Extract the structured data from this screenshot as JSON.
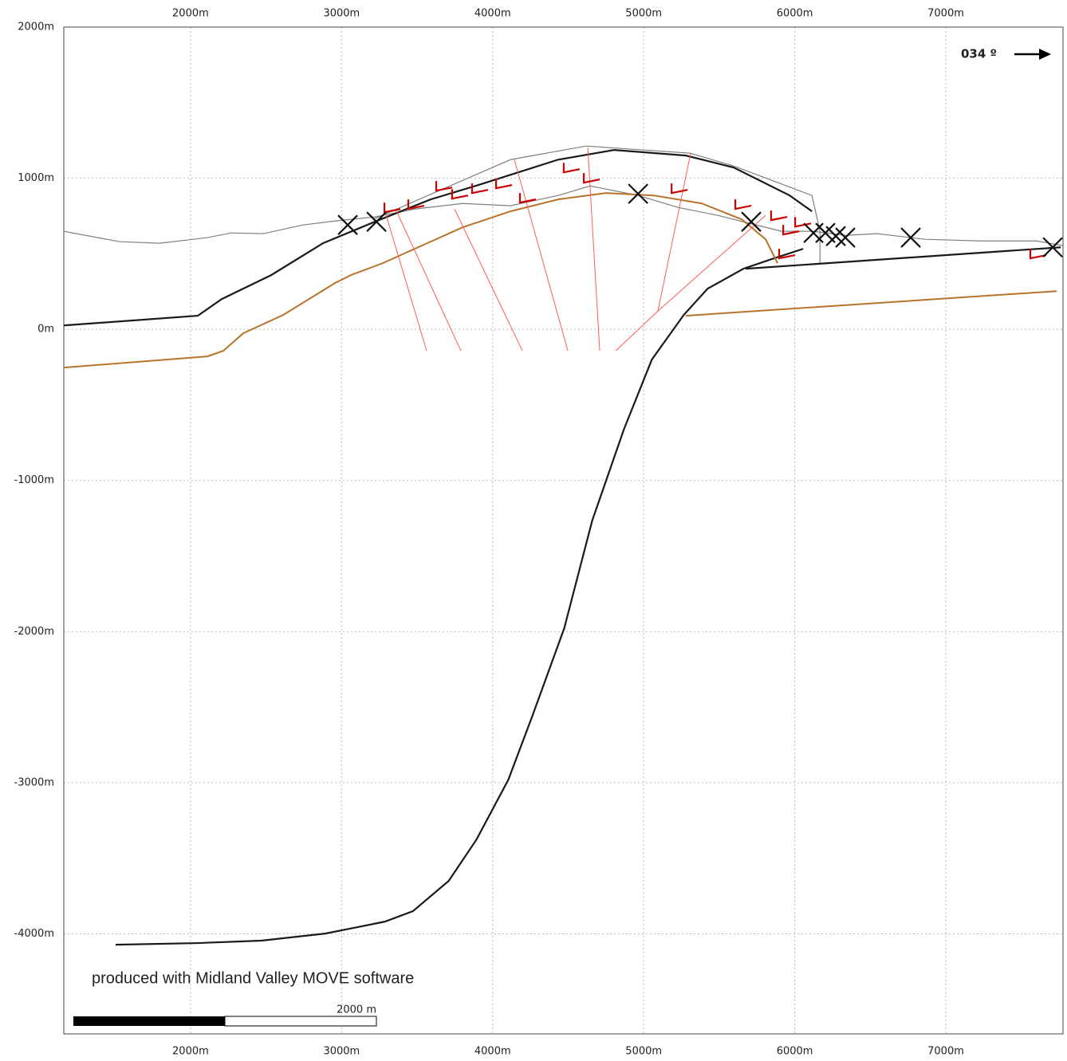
{
  "chart_data": {
    "type": "line",
    "annotations": {
      "direction": "034 º",
      "credit": "produced with Midland Valley MOVE software",
      "scale_bar": "2000 m"
    },
    "xlim": [
      1161,
      7776
    ],
    "ylim": [
      -4662,
      2000
    ],
    "grid": true,
    "xticks": [
      {
        "value": 2000,
        "label": "2000m"
      },
      {
        "value": 3000,
        "label": "3000m"
      },
      {
        "value": 4000,
        "label": "4000m"
      },
      {
        "value": 5000,
        "label": "5000m"
      },
      {
        "value": 6000,
        "label": "6000m"
      },
      {
        "value": 7000,
        "label": "7000m"
      }
    ],
    "yticks": [
      {
        "value": 2000,
        "label": "2000m"
      },
      {
        "value": 1000,
        "label": "1000m"
      },
      {
        "value": 0,
        "label": "0m"
      },
      {
        "value": -1000,
        "label": "-1000m"
      },
      {
        "value": -2000,
        "label": "-2000m"
      },
      {
        "value": -3000,
        "label": "-3000m"
      },
      {
        "value": -4000,
        "label": "-4000m"
      }
    ],
    "series": [
      {
        "color": "#808080",
        "width": 1.2,
        "marker": "none",
        "x": [
          1161,
          1531,
          1795,
          2111,
          2270,
          2481,
          2745,
          2956,
          3220,
          3484,
          3801,
          4118,
          4434,
          4646,
          4963,
          5227,
          5491,
          5702,
          5913,
          6124,
          6335,
          6546,
          6863,
          7233,
          7602,
          7776
        ],
        "values": [
          649,
          580,
          570,
          607,
          638,
          633,
          691,
          717,
          744,
          796,
          833,
          818,
          886,
          949,
          886,
          807,
          754,
          701,
          649,
          649,
          622,
          633,
          596,
          585,
          585,
          554
        ]
      },
      {
        "color": "#808080",
        "width": 1.2,
        "marker": "none",
        "x": [
          3220,
          4118,
          4619,
          5306,
          5596,
          6114,
          6167,
          6167
        ],
        "values": [
          733,
          1123,
          1213,
          1166,
          1081,
          886,
          649,
          438
        ]
      },
      {
        "color": "#1a1a1a",
        "width": 2.2,
        "marker": "none",
        "x": [
          1161,
          2048,
          2206,
          2534,
          2877,
          3220,
          3590,
          3906,
          4434,
          4804,
          5279,
          5596,
          5966,
          6114
        ],
        "values": [
          26,
          90,
          200,
          359,
          570,
          712,
          860,
          955,
          1123,
          1187,
          1150,
          1071,
          886,
          781
        ]
      },
      {
        "color": "#1a1a1a",
        "width": 2.2,
        "marker": "none",
        "x": [
          5675,
          7761
        ],
        "values": [
          401,
          543
        ]
      },
      {
        "color": "#1a1a1a",
        "width": 2.2,
        "marker": "none",
        "x": [
          1504,
          2048,
          2470,
          2892,
          3103,
          3287,
          3472,
          3709,
          3893,
          4104,
          4263,
          4474,
          4659,
          4870,
          5054,
          5265,
          5423,
          5660,
          5845,
          6056
        ],
        "values": [
          -4072,
          -4061,
          -4045,
          -3998,
          -3956,
          -3919,
          -3850,
          -3650,
          -3376,
          -2980,
          -2558,
          -1978,
          -1266,
          -659,
          -200,
          95,
          269,
          401,
          464,
          533
        ]
      },
      {
        "color": "#b8732a",
        "width": 2,
        "marker": "none",
        "x": [
          1161,
          2111,
          2217,
          2349,
          2613,
          2956,
          3062,
          3273,
          3484,
          3801,
          4118,
          4434,
          4751,
          5068,
          5385,
          5649,
          5807,
          5886
        ],
        "values": [
          -253,
          -179,
          -142,
          -26,
          95,
          306,
          359,
          438,
          533,
          675,
          781,
          860,
          902,
          886,
          833,
          728,
          596,
          438
        ]
      },
      {
        "color": "#b8732a",
        "width": 2,
        "marker": "none",
        "x": [
          5279,
          7734
        ],
        "values": [
          90,
          253
        ]
      },
      {
        "color": "#ff5a5a",
        "width": 1,
        "marker": "none",
        "x": [
          3563,
          3283
        ],
        "values": [
          -142,
          796
        ]
      },
      {
        "color": "#ff5a5a",
        "width": 1,
        "marker": "none",
        "x": [
          3790,
          3357
        ],
        "values": [
          -142,
          796
        ]
      },
      {
        "color": "#ff5a5a",
        "width": 1,
        "marker": "none",
        "x": [
          4197,
          3748
        ],
        "values": [
          -142,
          796
        ]
      },
      {
        "color": "#ff5a5a",
        "width": 1,
        "marker": "none",
        "x": [
          4498,
          4144
        ],
        "values": [
          -142,
          1123
        ]
      },
      {
        "color": "#ff5a5a",
        "width": 1,
        "marker": "none",
        "x": [
          4709,
          4630
        ],
        "values": [
          -142,
          1202
        ]
      },
      {
        "color": "#ff5a5a",
        "width": 1,
        "marker": "none",
        "x": [
          4815,
          5094,
          5311
        ],
        "values": [
          -142,
          121,
          1166
        ]
      },
      {
        "color": "#ff5a5a",
        "width": 1,
        "marker": "none",
        "x": [
          5094,
          5807
        ],
        "values": [
          121,
          754
        ]
      },
      {
        "color": "#cc0000",
        "width": 2.2,
        "marker": "dip",
        "x": [
          3326,
          3484,
          3669,
          3774,
          3906,
          4065,
          4223,
          4513,
          4646,
          5227,
          5649,
          5886,
          5966,
          6045,
          5939,
          7602
        ],
        "values": [
          796,
          818,
          939,
          886,
          923,
          955,
          860,
          1060,
          992,
          923,
          818,
          744,
          649,
          701,
          491,
          491
        ]
      },
      {
        "color": "#111111",
        "width": 2.2,
        "marker": "x",
        "x": [
          3041,
          3231,
          4963,
          5712,
          6124,
          6203,
          6272,
          6335,
          6768,
          7708
        ],
        "values": [
          691,
          712,
          897,
          712,
          638,
          638,
          617,
          607,
          607,
          543
        ]
      }
    ]
  }
}
